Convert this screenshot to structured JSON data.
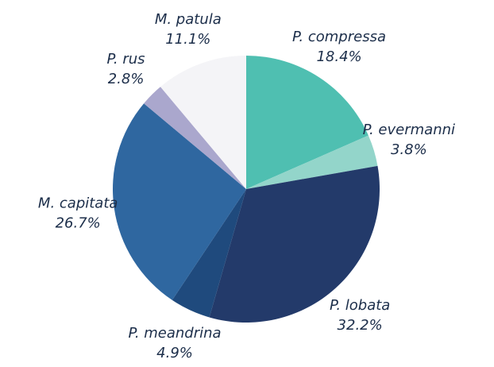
{
  "chart_data": {
    "type": "pie",
    "categories": [
      "P. compressa",
      "P. evermanni",
      "P. lobata",
      "P. meandrina",
      "M. capitata",
      "P. rus",
      "M. patula"
    ],
    "values": [
      18.4,
      3.8,
      32.2,
      4.9,
      26.7,
      2.8,
      11.1
    ],
    "value_labels": [
      "18.4%",
      "3.8%",
      "32.2%",
      "4.9%",
      "26.7%",
      "2.8%",
      "11.1%"
    ],
    "colors": [
      "#4fbfb1",
      "#93d5ca",
      "#233a6a",
      "#1f4a7d",
      "#2f67a0",
      "#aaa7cd",
      "#f4f4f7"
    ]
  }
}
